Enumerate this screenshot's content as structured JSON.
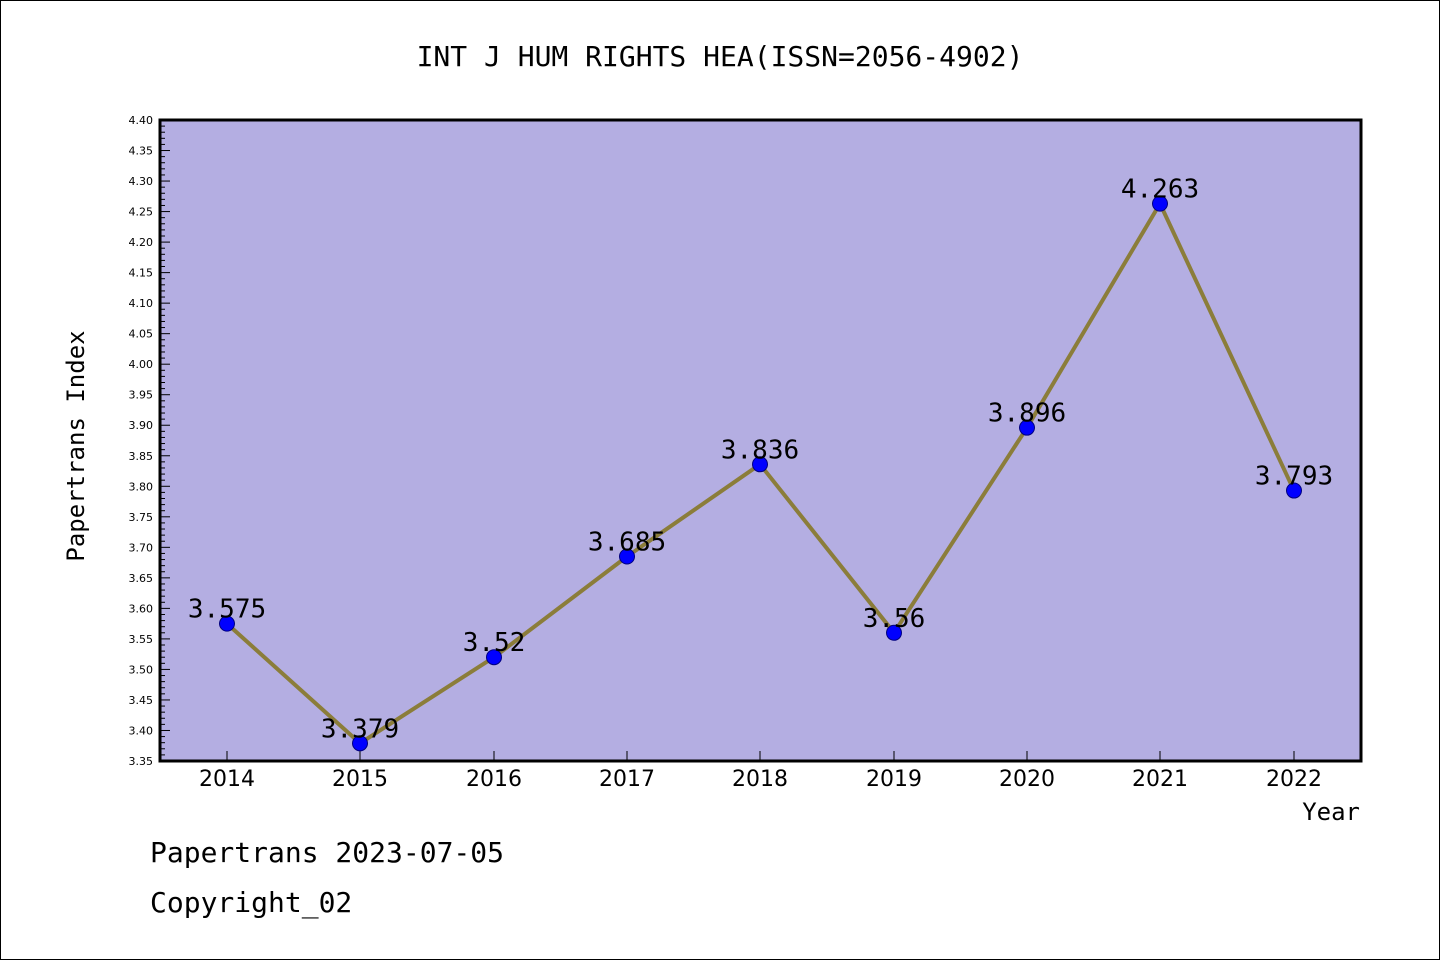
{
  "colors": {
    "plot_background": "#b4aee2",
    "line": "#8b7d3a",
    "marker": "#0000ff",
    "marker_edge": "#000080"
  },
  "footer": {
    "line1": "Papertrans 2023-07-05",
    "line2": "Copyright_02"
  },
  "chart_data": {
    "type": "line",
    "title": "INT J HUM RIGHTS HEA(ISSN=2056-4902)",
    "xlabel": "Year",
    "ylabel": "Papertrans Index",
    "x": [
      "2014",
      "2015",
      "2016",
      "2017",
      "2018",
      "2019",
      "2020",
      "2021",
      "2022"
    ],
    "series": [
      {
        "values": [
          3.575,
          3.379,
          3.52,
          3.685,
          3.836,
          3.56,
          3.896,
          4.263,
          3.793
        ],
        "labels": [
          "3.575",
          "3.379",
          "3.52",
          "3.685",
          "3.836",
          "3.56",
          "3.896",
          "4.263",
          "3.793"
        ]
      }
    ],
    "ylim": [
      3.35,
      4.4
    ],
    "yticks": [
      "3.35",
      "3.40",
      "3.45",
      "3.50",
      "3.55",
      "3.60",
      "3.65",
      "3.70",
      "3.75",
      "3.80",
      "3.85",
      "3.90",
      "3.95",
      "4.00",
      "4.05",
      "4.10",
      "4.15",
      "4.20",
      "4.25",
      "4.30",
      "4.35",
      "4.40"
    ],
    "grid": false,
    "legend": "none"
  }
}
